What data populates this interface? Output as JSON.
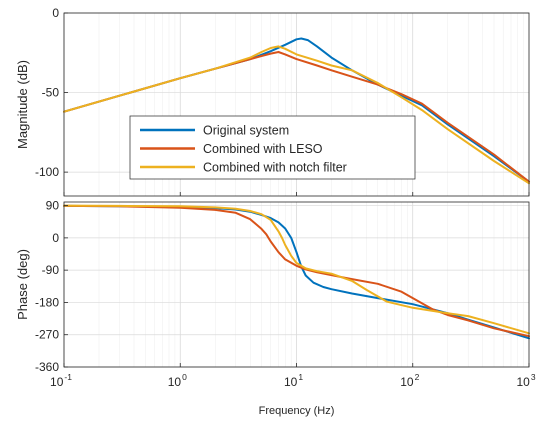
{
  "chart_data": {
    "type": "line",
    "xscale": "log",
    "xlim": [
      0.1,
      1000
    ],
    "x_tick_labels": [
      {
        "base": "10",
        "exp": "-1"
      },
      {
        "base": "10",
        "exp": "0"
      },
      {
        "base": "10",
        "exp": "1"
      },
      {
        "base": "10",
        "exp": "2"
      },
      {
        "base": "10",
        "exp": "3"
      }
    ],
    "xlabel": "Frequency  (Hz)",
    "grid": true,
    "legend": {
      "placement": "center",
      "panel": "magnitude"
    },
    "series_styles": [
      {
        "name": "Original system",
        "color": "#0072BD"
      },
      {
        "name": "Combined with LESO",
        "color": "#D95319"
      },
      {
        "name": "Combined with notch filter",
        "color": "#EDB120"
      }
    ],
    "panels": [
      {
        "id": "magnitude",
        "ylabel": "Magnitude (dB)",
        "ylim": [
          -115,
          0
        ],
        "yticks": [
          0,
          -50,
          -100
        ],
        "ytick_labels": [
          "0",
          "-50",
          "-100"
        ],
        "series": [
          {
            "name": "Original system",
            "x": [
              0.1,
              0.3,
              1,
              2,
              4,
              6,
              8,
              10,
              11,
              12.5,
              15,
              20,
              30,
              50,
              80,
              120,
              200,
              500,
              1000
            ],
            "y": [
              -62,
              -52,
              -41,
              -35,
              -29,
              -24,
              -20,
              -16.5,
              -16,
              -17,
              -21,
              -28,
              -36,
              -45,
              -52,
              -58,
              -70,
              -90,
              -106
            ]
          },
          {
            "name": "Combined with LESO",
            "x": [
              0.1,
              0.3,
              1,
              2,
              4,
              5,
              6,
              7,
              8,
              10,
              15,
              20,
              30,
              50,
              80,
              120,
              200,
              500,
              1000
            ],
            "y": [
              -62,
              -52,
              -41,
              -35,
              -29,
              -27,
              -25.5,
              -24.5,
              -26,
              -29,
              -33,
              -36,
              -40,
              -45,
              -51,
              -57,
              -69,
              -89,
              -106
            ]
          },
          {
            "name": "Combined with notch filter",
            "x": [
              0.1,
              0.3,
              1,
              2,
              4,
              5,
              6,
              7,
              8,
              10,
              15,
              20,
              30,
              50,
              80,
              120,
              200,
              500,
              1000
            ],
            "y": [
              -62,
              -52,
              -41,
              -35,
              -28,
              -24.5,
              -22,
              -21,
              -22.5,
              -26,
              -30,
              -33,
              -36,
              -44,
              -53,
              -61,
              -73,
              -93,
              -107
            ]
          }
        ]
      },
      {
        "id": "phase",
        "ylabel": "Phase (deg)",
        "ylim": [
          -360,
          100
        ],
        "yticks": [
          90,
          0,
          -90,
          -180,
          -270,
          -360
        ],
        "ytick_labels": [
          "90",
          "0",
          "-90",
          "-180",
          "-270",
          "-360"
        ],
        "series": [
          {
            "name": "Original system",
            "x": [
              0.1,
              0.3,
              1,
              2,
              3,
              4,
              5,
              6,
              7,
              8,
              9,
              10,
              11,
              12,
              14,
              17,
              20,
              30,
              50,
              100,
              200,
              300,
              500,
              1000
            ],
            "y": [
              89,
              88,
              86,
              83,
              79,
              73,
              64,
              55,
              43,
              26,
              0,
              -40,
              -80,
              -105,
              -125,
              -137,
              -143,
              -155,
              -168,
              -185,
              -210,
              -228,
              -250,
              -280
            ]
          },
          {
            "name": "Combined with LESO",
            "x": [
              0.1,
              0.3,
              1,
              2,
              3,
              4,
              5,
              5.5,
              6,
              7,
              8,
              10,
              12,
              15,
              20,
              30,
              50,
              80,
              100,
              150,
              200,
              300,
              500,
              1000
            ],
            "y": [
              89,
              88,
              84,
              78,
              70,
              52,
              25,
              10,
              -10,
              -40,
              -60,
              -78,
              -88,
              -96,
              -104,
              -115,
              -128,
              -150,
              -168,
              -200,
              -215,
              -230,
              -252,
              -274
            ]
          },
          {
            "name": "Combined with notch filter",
            "x": [
              0.1,
              0.3,
              1,
              2,
              3,
              4,
              5,
              6,
              7,
              7.5,
              8,
              9,
              10,
              12,
              15,
              20,
              30,
              40,
              60,
              100,
              200,
              300,
              500,
              1000
            ],
            "y": [
              90,
              89,
              88,
              85,
              81,
              75,
              66,
              50,
              18,
              0,
              -20,
              -50,
              -70,
              -85,
              -93,
              -100,
              -120,
              -145,
              -178,
              -195,
              -210,
              -218,
              -238,
              -266
            ]
          }
        ]
      }
    ]
  }
}
